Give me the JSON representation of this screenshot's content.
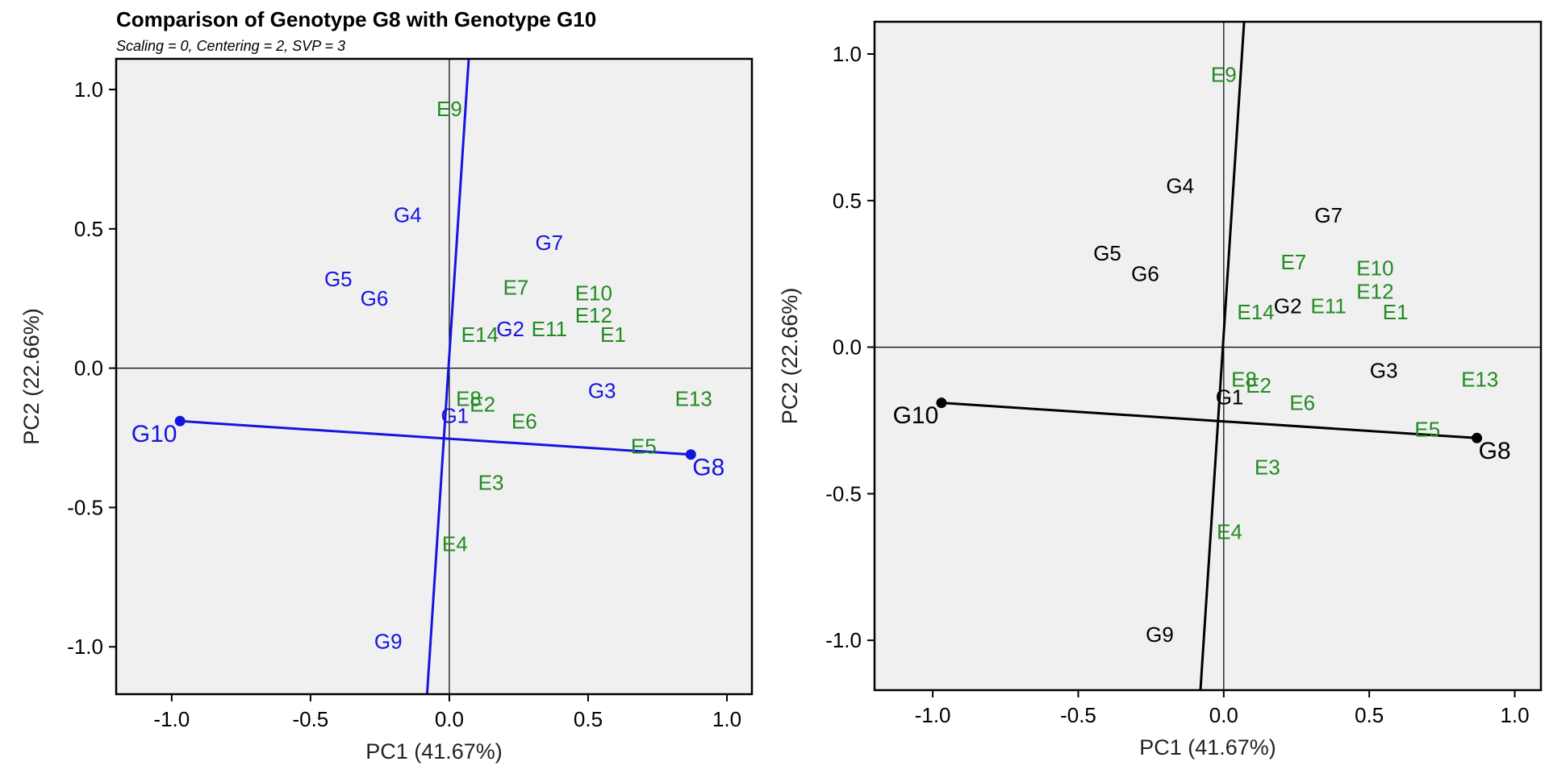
{
  "chart_data": [
    {
      "type": "scatter",
      "title": "Comparison of Genotype G8 with Genotype G10",
      "subtitle": "Scaling = 0, Centering = 2, SVP = 3",
      "xlabel": "PC1 (41.67%)",
      "ylabel": "PC2 (22.66%)",
      "xlim": [
        -1.2,
        1.09
      ],
      "ylim": [
        -1.17,
        1.11
      ],
      "xticks": [
        "-1.0",
        "-0.5",
        "0.0",
        "0.5",
        "1.0"
      ],
      "yticks": [
        "1.0",
        "0.5",
        "0.0",
        "-0.5",
        "-1.0"
      ],
      "genotype_color": "#1515e0",
      "environment_color": "#228B22",
      "line_color": "#1515e0",
      "genotypes": [
        {
          "label": "G1",
          "x": 0.02,
          "y": -0.17
        },
        {
          "label": "G2",
          "x": 0.22,
          "y": 0.14
        },
        {
          "label": "G3",
          "x": 0.55,
          "y": -0.08
        },
        {
          "label": "G4",
          "x": -0.15,
          "y": 0.55
        },
        {
          "label": "G5",
          "x": -0.4,
          "y": 0.32
        },
        {
          "label": "G6",
          "x": -0.27,
          "y": 0.25
        },
        {
          "label": "G7",
          "x": 0.36,
          "y": 0.45
        },
        {
          "label": "G8",
          "x": 0.87,
          "y": -0.31
        },
        {
          "label": "G9",
          "x": -0.22,
          "y": -0.98
        },
        {
          "label": "G10",
          "x": -0.97,
          "y": -0.19
        }
      ],
      "environments": [
        {
          "label": "E1",
          "x": 0.59,
          "y": 0.12
        },
        {
          "label": "E2",
          "x": 0.12,
          "y": -0.13
        },
        {
          "label": "E3",
          "x": 0.15,
          "y": -0.41
        },
        {
          "label": "E4",
          "x": 0.02,
          "y": -0.63
        },
        {
          "label": "E5",
          "x": 0.7,
          "y": -0.28
        },
        {
          "label": "E6",
          "x": 0.27,
          "y": -0.19
        },
        {
          "label": "E7",
          "x": 0.24,
          "y": 0.29
        },
        {
          "label": "E8",
          "x": 0.07,
          "y": -0.11
        },
        {
          "label": "E9",
          "x": 0.0,
          "y": 0.93
        },
        {
          "label": "E10",
          "x": 0.52,
          "y": 0.27
        },
        {
          "label": "E11",
          "x": 0.36,
          "y": 0.14
        },
        {
          "label": "E12",
          "x": 0.52,
          "y": 0.19
        },
        {
          "label": "E13",
          "x": 0.88,
          "y": -0.11
        },
        {
          "label": "E14",
          "x": 0.11,
          "y": 0.12
        }
      ],
      "comparison_line": {
        "from": "G10",
        "to": "G8",
        "from_x": -0.97,
        "from_y": -0.19,
        "to_x": 0.87,
        "to_y": -0.31
      },
      "perpendicular_line": {
        "x1": -0.08,
        "y1": -1.17,
        "x2": 0.07,
        "y2": 1.11
      }
    },
    {
      "type": "scatter",
      "xlabel": "PC1 (41.67%)",
      "ylabel": "PC2 (22.66%)",
      "xlim": [
        -1.2,
        1.09
      ],
      "ylim": [
        -1.17,
        1.11
      ],
      "xticks": [
        "-1.0",
        "-0.5",
        "0.0",
        "0.5",
        "1.0"
      ],
      "yticks": [
        "1.0",
        "0.5",
        "0.0",
        "-0.5",
        "-1.0"
      ],
      "genotype_color": "#000000",
      "environment_color": "#228B22",
      "line_color": "#000000",
      "genotypes": [
        {
          "label": "G1",
          "x": 0.02,
          "y": -0.17
        },
        {
          "label": "G2",
          "x": 0.22,
          "y": 0.14
        },
        {
          "label": "G3",
          "x": 0.55,
          "y": -0.08
        },
        {
          "label": "G4",
          "x": -0.15,
          "y": 0.55
        },
        {
          "label": "G5",
          "x": -0.4,
          "y": 0.32
        },
        {
          "label": "G6",
          "x": -0.27,
          "y": 0.25
        },
        {
          "label": "G7",
          "x": 0.36,
          "y": 0.45
        },
        {
          "label": "G8",
          "x": 0.87,
          "y": -0.31
        },
        {
          "label": "G9",
          "x": -0.22,
          "y": -0.98
        },
        {
          "label": "G10",
          "x": -0.97,
          "y": -0.19
        }
      ],
      "environments": [
        {
          "label": "E1",
          "x": 0.59,
          "y": 0.12
        },
        {
          "label": "E2",
          "x": 0.12,
          "y": -0.13
        },
        {
          "label": "E3",
          "x": 0.15,
          "y": -0.41
        },
        {
          "label": "E4",
          "x": 0.02,
          "y": -0.63
        },
        {
          "label": "E5",
          "x": 0.7,
          "y": -0.28
        },
        {
          "label": "E6",
          "x": 0.27,
          "y": -0.19
        },
        {
          "label": "E7",
          "x": 0.24,
          "y": 0.29
        },
        {
          "label": "E8",
          "x": 0.07,
          "y": -0.11
        },
        {
          "label": "E9",
          "x": 0.0,
          "y": 0.93
        },
        {
          "label": "E10",
          "x": 0.52,
          "y": 0.27
        },
        {
          "label": "E11",
          "x": 0.36,
          "y": 0.14
        },
        {
          "label": "E12",
          "x": 0.52,
          "y": 0.19
        },
        {
          "label": "E13",
          "x": 0.88,
          "y": -0.11
        },
        {
          "label": "E14",
          "x": 0.11,
          "y": 0.12
        }
      ],
      "comparison_line": {
        "from": "G10",
        "to": "G8",
        "from_x": -0.97,
        "from_y": -0.19,
        "to_x": 0.87,
        "to_y": -0.31
      },
      "perpendicular_line": {
        "x1": -0.08,
        "y1": -1.17,
        "x2": 0.07,
        "y2": 1.11
      }
    }
  ]
}
